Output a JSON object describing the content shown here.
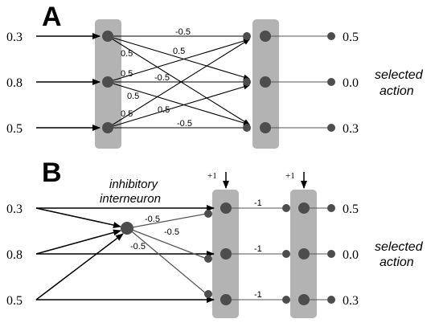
{
  "panel_a": {
    "label": "A",
    "inputs": [
      "0.3",
      "0.8",
      "0.5"
    ],
    "outputs": [
      "0.5",
      "0.0",
      "0.3"
    ],
    "weights": {
      "top_straight": "-0.5",
      "mid_straight": "-0.5",
      "bot_straight": "-0.5",
      "from_top_1": "0.5",
      "from_top_2": "0.5",
      "from_mid_1": "0.5",
      "from_mid_2": "0.5",
      "from_bot_1": "0.5",
      "from_bot_2": "0.5"
    },
    "side_label_line1": "selected",
    "side_label_line2": "action"
  },
  "panel_b": {
    "label": "B",
    "inputs": [
      "0.3",
      "0.8",
      "0.5"
    ],
    "outputs": [
      "0.5",
      "0.0",
      "0.3"
    ],
    "interneuron_line1": "inhibitory",
    "interneuron_line2": "interneuron",
    "inhib_weights": [
      "-0.5",
      "-0.5",
      "-0.5"
    ],
    "layer_weights": [
      "-1",
      "-1",
      "-1"
    ],
    "bias_labels": [
      "+1",
      "+1"
    ],
    "side_label_line1": "selected",
    "side_label_line2": "action"
  },
  "colors": {
    "column_fill": "#b3b3b3",
    "node_fill": "#4d4d4d",
    "line": "#000000",
    "inhib_line": "#555555"
  }
}
